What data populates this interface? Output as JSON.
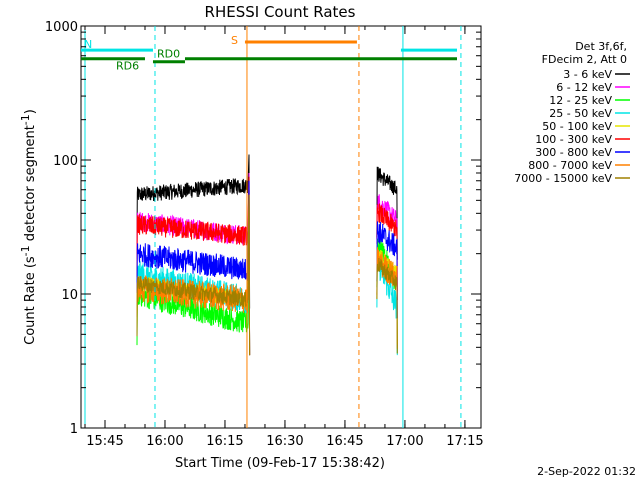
{
  "chart_data": {
    "type": "line",
    "title": "RHESSI Count Rates",
    "xlabel": "Start Time (09-Feb-17 15:38:42)",
    "ylabel": "Count Rate (s",
    "ylabel_sup": "-1",
    "ylabel_tail": " detector segment",
    "ylabel_sup2": "-1",
    "ylabel_close": ")",
    "yscale": "log",
    "ylim": [
      1,
      1000
    ],
    "xlim_minutes": [
      15.65,
      17.317
    ],
    "x_ticks": [
      "15:45",
      "16:00",
      "16:15",
      "16:30",
      "16:45",
      "17:00",
      "17:15"
    ],
    "y_ticks": [
      "1",
      "10",
      "100",
      "1000"
    ],
    "timestamp": "2-Sep-2022 01:32",
    "legend_header": [
      "Det 3f,6f,",
      "FDecim 2, Att 0"
    ],
    "series": [
      {
        "name": "3 - 6 keV",
        "color": "#000000",
        "segments": [
          {
            "start": "15:53",
            "end": "16:21",
            "level_start": 55,
            "level_end": 65,
            "spike": 110
          },
          {
            "start": "16:53",
            "end": "16:58",
            "level_start": 80,
            "level_end": 60
          }
        ]
      },
      {
        "name": "6 - 12 keV",
        "color": "#ff00ff",
        "segments": [
          {
            "start": "15:53",
            "end": "16:21",
            "level_start": 35,
            "level_end": 27,
            "spike": 80
          },
          {
            "start": "16:53",
            "end": "16:58",
            "level_start": 50,
            "level_end": 35
          }
        ]
      },
      {
        "name": "12 - 25 keV",
        "color": "#00ff00",
        "segments": [
          {
            "start": "15:53",
            "end": "16:21",
            "level_start": 10,
            "level_end": 6,
            "spike": 60
          },
          {
            "start": "16:53",
            "end": "16:58",
            "level_start": 25,
            "level_end": 12
          }
        ]
      },
      {
        "name": "25 - 50 keV",
        "color": "#00e5e5",
        "segments": [
          {
            "start": "15:53",
            "end": "16:21",
            "level_start": 14,
            "level_end": 9,
            "spike": 65
          },
          {
            "start": "16:53",
            "end": "16:58",
            "level_start": 18,
            "level_end": 8
          }
        ]
      },
      {
        "name": "50 - 100 keV",
        "color": "#e5e500",
        "segments": [
          {
            "start": "15:53",
            "end": "16:21",
            "level_start": 12,
            "level_end": 9,
            "spike": 60
          },
          {
            "start": "16:53",
            "end": "16:58",
            "level_start": 20,
            "level_end": 14
          }
        ]
      },
      {
        "name": "100 - 300 keV",
        "color": "#ff0000",
        "segments": [
          {
            "start": "15:53",
            "end": "16:21",
            "level_start": 33,
            "level_end": 27,
            "spike": 75
          },
          {
            "start": "16:53",
            "end": "16:58",
            "level_start": 42,
            "level_end": 30
          }
        ]
      },
      {
        "name": "300 - 800 keV",
        "color": "#0000ff",
        "segments": [
          {
            "start": "15:53",
            "end": "16:21",
            "level_start": 20,
            "level_end": 15,
            "spike": 70
          },
          {
            "start": "16:53",
            "end": "16:58",
            "level_start": 30,
            "level_end": 22
          }
        ]
      },
      {
        "name": "800 - 7000 keV",
        "color": "#ff8000",
        "segments": [
          {
            "start": "15:53",
            "end": "16:21",
            "level_start": 11,
            "level_end": 9,
            "spike": 55
          },
          {
            "start": "16:53",
            "end": "16:58",
            "level_start": 18,
            "level_end": 13
          }
        ]
      },
      {
        "name": "7000 - 15000 keV",
        "color": "#a08000",
        "segments": [
          {
            "start": "15:53",
            "end": "16:21",
            "level_start": 12,
            "level_end": 9,
            "spike": 55
          },
          {
            "start": "16:53",
            "end": "16:58",
            "level_start": 17,
            "level_end": 12
          }
        ]
      }
    ],
    "flags": [
      {
        "label": "N",
        "color": "#00e5e5",
        "level": 660,
        "ranges": [
          [
            "15:39",
            "15:57"
          ],
          [
            "16:59",
            "17:14"
          ]
        ]
      },
      {
        "label": "RD0",
        "color": "#008000",
        "level": 570,
        "ranges": [
          [
            "15:57",
            "16:05"
          ],
          [
            "16:05",
            "17:17"
          ]
        ]
      },
      {
        "label": "RD6",
        "color": "#008000",
        "level": 570,
        "ranges": [
          [
            "15:39",
            "15:55"
          ]
        ]
      },
      {
        "label": "S",
        "color": "#ff8000",
        "level": 760,
        "ranges": [
          [
            "16:20",
            "16:48"
          ]
        ]
      }
    ],
    "vlines": [
      {
        "time": "15:40",
        "color": "#00e5e5",
        "style": "solid"
      },
      {
        "time": "15:57.5",
        "color": "#00e5e5",
        "style": "dashed"
      },
      {
        "time": "16:20.5",
        "color": "#ff8000",
        "style": "solid"
      },
      {
        "time": "16:48.5",
        "color": "#ff8000",
        "style": "dashed"
      },
      {
        "time": "16:59.5",
        "color": "#00e5e5",
        "style": "solid"
      },
      {
        "time": "17:14",
        "color": "#00e5e5",
        "style": "dashed"
      }
    ]
  }
}
